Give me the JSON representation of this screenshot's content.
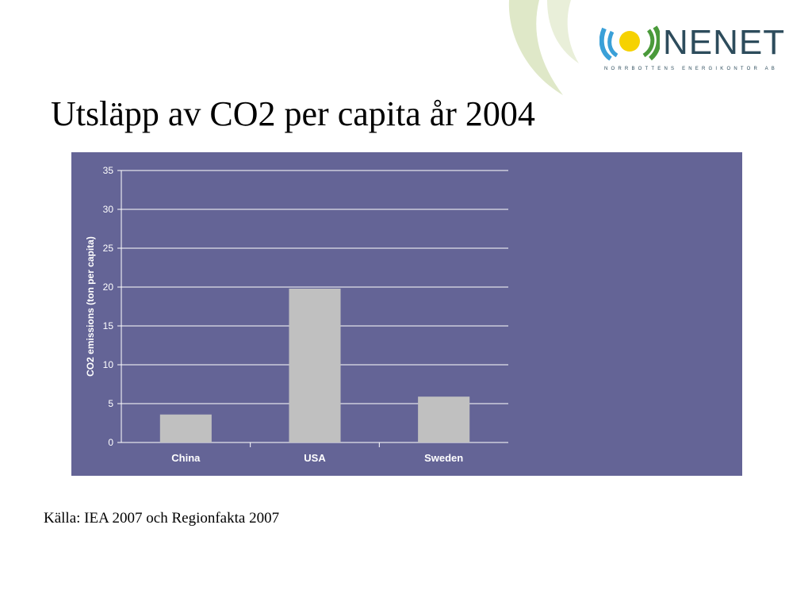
{
  "title": "Utsläpp av CO2 per capita år 2004",
  "source": "Källa: IEA 2007 och Regionfakta 2007",
  "logo": {
    "name": "NENET",
    "subtitle": "NORRBOTTENS ENERGIKONTOR AB"
  },
  "colors": {
    "chart_background": "#646496",
    "bar_fill": "#c0c0c0",
    "gridline": "#ffffff",
    "logo_text": "#2d4c5c",
    "logo_sun": "#f6d200",
    "logo_blue": "#3aa0d8",
    "logo_green": "#4a9a3a",
    "leaf_deco": "#dfe8c8"
  },
  "chart_data": {
    "type": "bar",
    "categories": [
      "China",
      "USA",
      "Sweden"
    ],
    "values": [
      3.6,
      19.8,
      5.9
    ],
    "title": "",
    "xlabel": "",
    "ylabel": "CO2 emissions (ton per capita)",
    "ylim": [
      0,
      35
    ],
    "yticks": [
      0,
      5,
      10,
      15,
      20,
      25,
      30,
      35
    ],
    "grid": true,
    "legend": "none"
  }
}
